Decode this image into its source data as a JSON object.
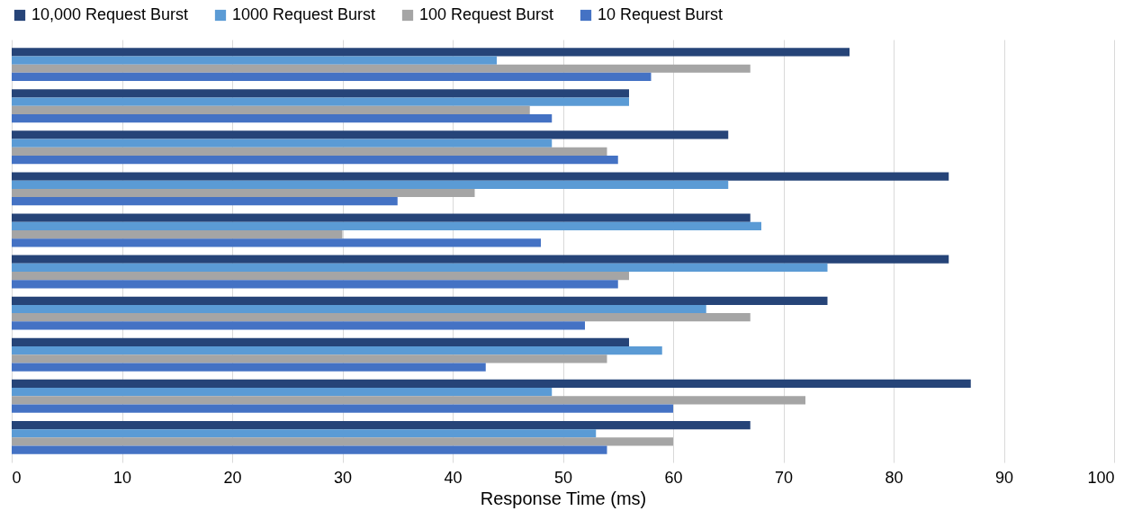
{
  "chart_data": {
    "type": "bar",
    "orientation": "horizontal",
    "xlabel": "Response Time (ms)",
    "categories": [
      null,
      null,
      null,
      null,
      null,
      null,
      null,
      null,
      null,
      null
    ],
    "series": [
      {
        "name": "10,000 Request Burst",
        "color": "#264478",
        "values": [
          76,
          56,
          65,
          85,
          67,
          85,
          74,
          56,
          87,
          67
        ]
      },
      {
        "name": "1000 Request Burst",
        "color": "#5b9bd5",
        "values": [
          44,
          56,
          49,
          65,
          68,
          74,
          63,
          59,
          49,
          53
        ]
      },
      {
        "name": "100 Request Burst",
        "color": "#a5a5a5",
        "values": [
          67,
          47,
          54,
          42,
          30,
          56,
          67,
          54,
          72,
          60
        ]
      },
      {
        "name": "10 Request Burst",
        "color": "#4472c4",
        "values": [
          58,
          49,
          55,
          35,
          48,
          55,
          52,
          43,
          60,
          54
        ]
      }
    ],
    "xlim": [
      0,
      100
    ],
    "xticks": [
      0,
      10,
      20,
      30,
      40,
      50,
      60,
      70,
      80,
      90,
      100
    ],
    "grid": "x",
    "legend": "top",
    "tick_labels": "x"
  }
}
